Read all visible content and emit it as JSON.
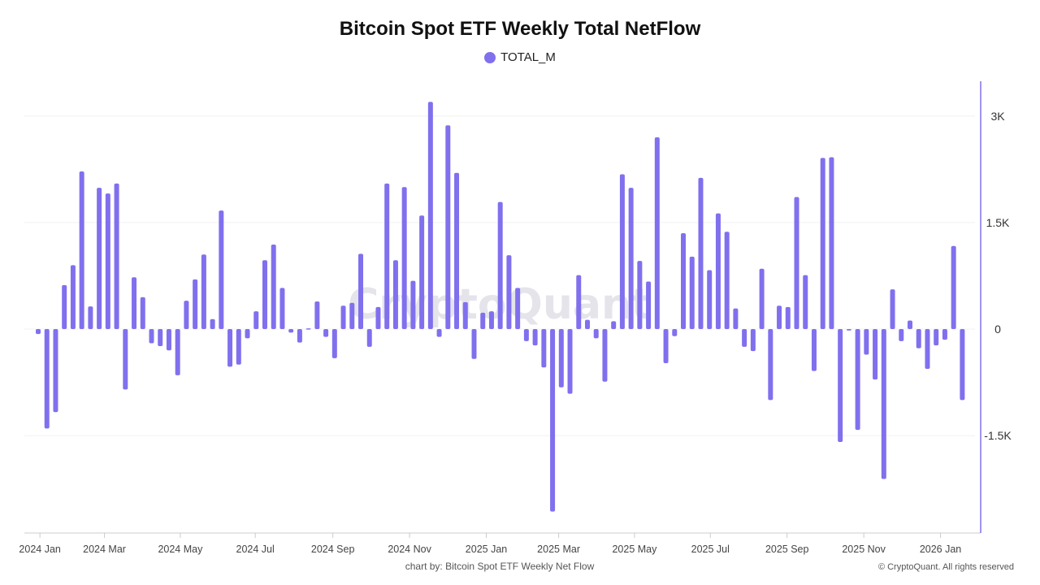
{
  "chart_data": {
    "type": "bar",
    "title": "Bitcoin Spot ETF Weekly Total NetFlow",
    "legend": [
      {
        "name": "TOTAL_M",
        "color": "#8070ee"
      }
    ],
    "legend_placement": "top-center",
    "xlabel": "",
    "ylabel": "",
    "y_axis_side": "right",
    "ylim": [
      -2860,
      3490
    ],
    "y_ticks": [
      {
        "value": 3000,
        "label": "3K"
      },
      {
        "value": 1500,
        "label": "1.5K"
      },
      {
        "value": 0,
        "label": "0"
      },
      {
        "value": -1500,
        "label": "-1.5K"
      }
    ],
    "x_ticks": [
      {
        "week_index": 0.2,
        "label": "2024 Jan"
      },
      {
        "week_index": 7.6,
        "label": "2024 Mar"
      },
      {
        "week_index": 16.3,
        "label": "2024 May"
      },
      {
        "week_index": 24.9,
        "label": "2024 Jul"
      },
      {
        "week_index": 33.8,
        "label": "2024 Sep"
      },
      {
        "week_index": 42.6,
        "label": "2024 Nov"
      },
      {
        "week_index": 51.4,
        "label": "2025 Jan"
      },
      {
        "week_index": 59.7,
        "label": "2025 Mar"
      },
      {
        "week_index": 68.4,
        "label": "2025 May"
      },
      {
        "week_index": 77.1,
        "label": "2025 Jul"
      },
      {
        "week_index": 85.9,
        "label": "2025 Sep"
      },
      {
        "week_index": 94.7,
        "label": "2025 Nov"
      },
      {
        "week_index": 103.5,
        "label": "2026 Jan"
      }
    ],
    "grid": true,
    "series": [
      {
        "name": "TOTAL_M",
        "color": "#8070ee",
        "values": [
          -70,
          -1400,
          -1170,
          620,
          900,
          2220,
          320,
          1990,
          1910,
          2050,
          -850,
          730,
          450,
          -200,
          -240,
          -300,
          -650,
          400,
          700,
          1050,
          140,
          1670,
          -530,
          -500,
          -130,
          250,
          970,
          1190,
          580,
          -50,
          -190,
          10,
          390,
          -110,
          -410,
          330,
          370,
          1060,
          -250,
          310,
          2050,
          970,
          2000,
          680,
          1600,
          3200,
          -110,
          2870,
          2200,
          380,
          -420,
          230,
          250,
          1790,
          1040,
          580,
          -170,
          -230,
          -540,
          -2570,
          -820,
          -910,
          760,
          130,
          -130,
          -740,
          110,
          2180,
          1990,
          960,
          670,
          2700,
          -480,
          -100,
          1350,
          1020,
          2130,
          830,
          1630,
          1370,
          290,
          -250,
          -310,
          850,
          -1000,
          330,
          310,
          1860,
          760,
          -590,
          2410,
          2420,
          -1590,
          -20,
          -1420,
          -360,
          -710,
          -2110,
          560,
          -170,
          120,
          -270,
          -560,
          -230,
          -150,
          1170,
          -1000
        ]
      }
    ],
    "watermark": "CryptoQuant"
  },
  "footer": {
    "source": "chart by: Bitcoin Spot ETF Weekly Net Flow",
    "copyright": "© CryptoQuant. All rights reserved"
  }
}
